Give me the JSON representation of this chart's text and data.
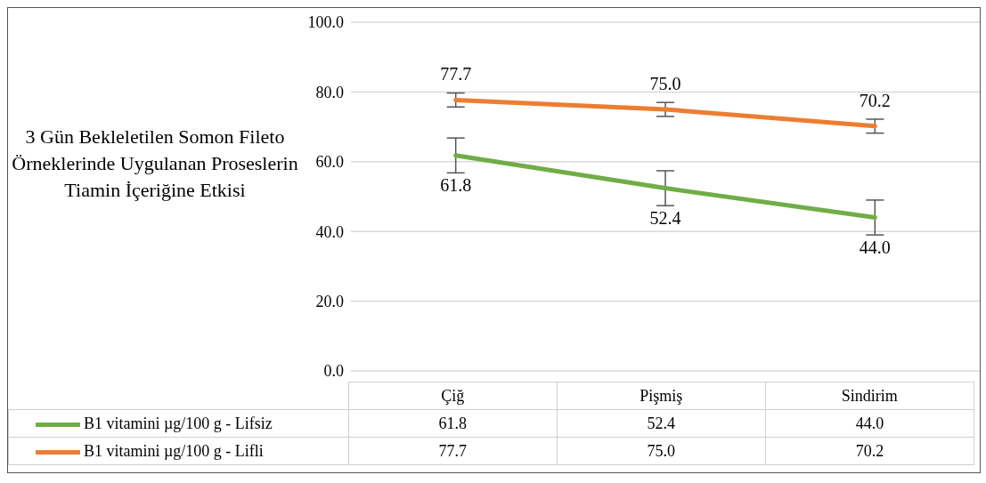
{
  "chart_data": {
    "type": "line",
    "title": "3 Gün Bekleletilen Somon Fileto Örneklerinde Uygulanan Proseslerin Tiamin İçeriğine Etkisi",
    "categories": [
      "Çiğ",
      "Pişmiş",
      "Sindirim"
    ],
    "series": [
      {
        "name": "B1 vitamini µg/100 g - Lifsiz",
        "color": "#70ad47",
        "values": [
          61.8,
          52.4,
          44.0
        ],
        "value_labels": [
          "61.8",
          "52.4",
          "44.0"
        ],
        "errors": [
          5,
          5,
          5
        ]
      },
      {
        "name": "B1 vitamini µg/100 g - Lifli",
        "color": "#ed7d31",
        "values": [
          77.7,
          75.0,
          70.2
        ],
        "value_labels": [
          "77.7",
          "75.0",
          "70.2"
        ],
        "errors": [
          2,
          2,
          2
        ]
      }
    ],
    "ylim": [
      0,
      100
    ],
    "yticks": [
      {
        "value": 0,
        "label": "0.0"
      },
      {
        "value": 20,
        "label": "20.0"
      },
      {
        "value": 40,
        "label": "40.0"
      },
      {
        "value": 60,
        "label": "60.0"
      },
      {
        "value": 80,
        "label": "80.0"
      },
      {
        "value": 100,
        "label": "100.0"
      }
    ],
    "grid": "y",
    "legend": "bottom",
    "marker": "none",
    "line_style": "solid"
  }
}
